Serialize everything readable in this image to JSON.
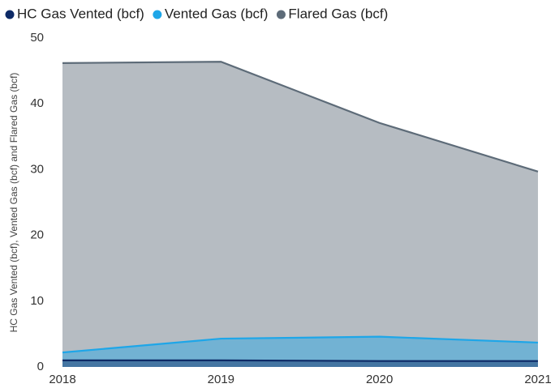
{
  "chart_data": {
    "type": "area",
    "y_label": "HC Gas Vented (bcf), Vented Gas (bcf) and Flared Gas (bcf)",
    "categories": [
      "2018",
      "2019",
      "2020",
      "2021"
    ],
    "series": [
      {
        "name": "HC Gas Vented (bcf)",
        "color": "#0d2a66",
        "values": [
          1.0,
          1.0,
          0.9,
          0.9
        ]
      },
      {
        "name": "Vented Gas (bcf)",
        "color": "#1ea6e8",
        "values": [
          2.2,
          4.3,
          4.6,
          3.7
        ]
      },
      {
        "name": "Flared Gas (bcf)",
        "color": "#5d6b78",
        "values": [
          46.2,
          46.4,
          37.1,
          29.7
        ]
      }
    ],
    "ylim": [
      0,
      50
    ],
    "yticks": [
      0,
      10,
      20,
      30,
      40,
      50
    ],
    "grid": false
  }
}
